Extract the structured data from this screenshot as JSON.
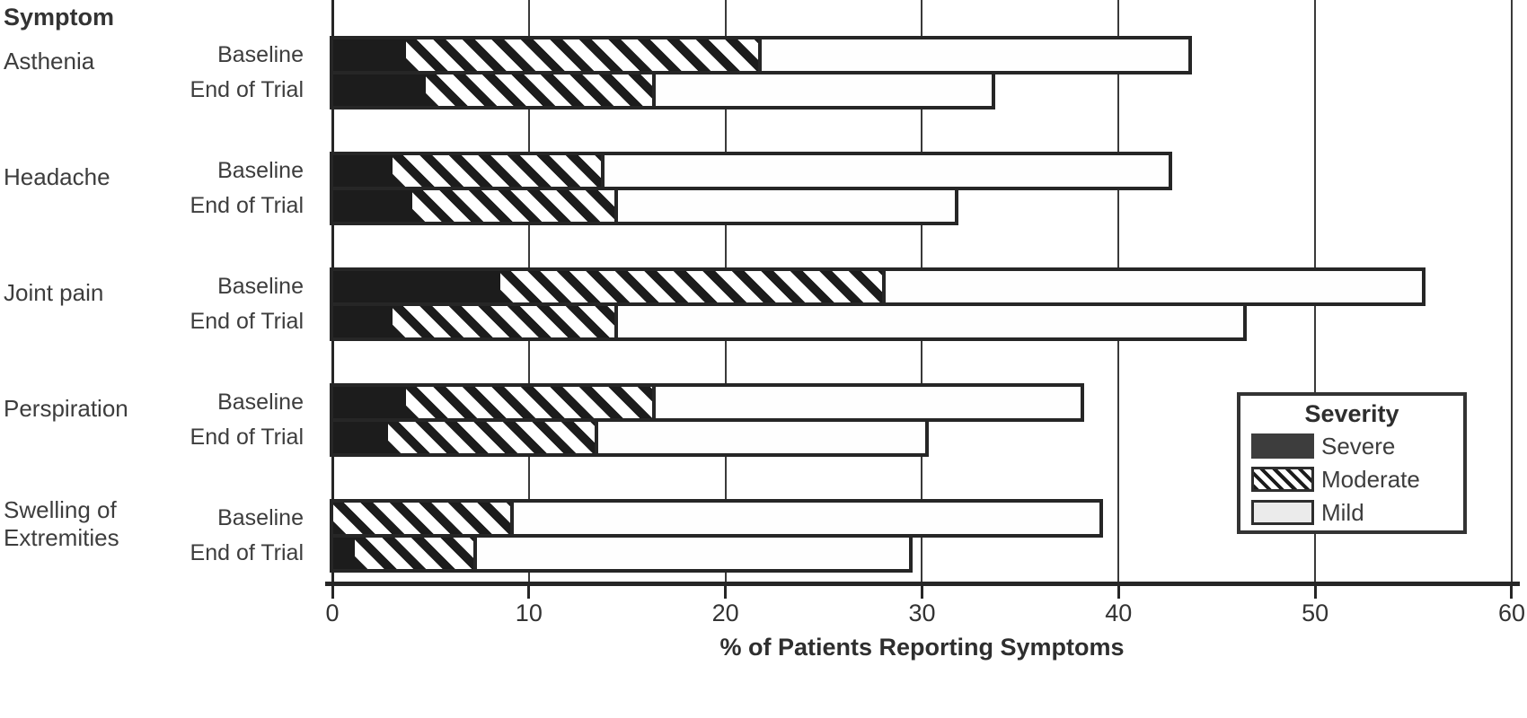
{
  "header": {
    "symptom": "Symptom"
  },
  "xlabel": "% of Patients Reporting Symptoms",
  "legend": {
    "title": "Severity",
    "items": [
      {
        "label": "Severe",
        "style": "solid-dark"
      },
      {
        "label": "Moderate",
        "style": "diagonal-hatch"
      },
      {
        "label": "Mild",
        "style": "light"
      }
    ]
  },
  "colors": {
    "severe": "#1c1c1c",
    "mild": "#ffffff",
    "legend_mild": "#ebebeb",
    "bar_border": "#262626",
    "gridline": "#3a3a3a",
    "text": "#383838"
  },
  "chart_data": {
    "type": "bar",
    "orientation": "horizontal",
    "stacked": true,
    "xlabel": "% of Patients Reporting Symptoms",
    "xlim": [
      0,
      60
    ],
    "ticks": [
      0,
      10,
      20,
      30,
      40,
      50,
      60
    ],
    "grid": true,
    "legend_position": "right-middle",
    "severity_levels": [
      "Severe",
      "Moderate",
      "Mild"
    ],
    "row_names": [
      "Baseline",
      "End of Trial"
    ],
    "groups": [
      {
        "symptom": "Asthenia",
        "label_lines": [
          "Asthenia"
        ],
        "bars": [
          {
            "label": "Baseline",
            "severe": 3.7,
            "moderate": 18.1,
            "mild": 21.7,
            "total": 43.5
          },
          {
            "label": "End of Trial",
            "severe": 4.7,
            "moderate": 11.7,
            "mild": 17.1,
            "total": 33.5
          }
        ]
      },
      {
        "symptom": "Headache",
        "label_lines": [
          "Headache"
        ],
        "bars": [
          {
            "label": "Baseline",
            "severe": 3.0,
            "moderate": 10.8,
            "mild": 28.7,
            "total": 42.5
          },
          {
            "label": "End of Trial",
            "severe": 4.0,
            "moderate": 10.5,
            "mild": 17.1,
            "total": 31.6
          }
        ]
      },
      {
        "symptom": "Joint pain",
        "label_lines": [
          "Joint pain"
        ],
        "bars": [
          {
            "label": "Baseline",
            "severe": 8.5,
            "moderate": 19.6,
            "mild": 27.3,
            "total": 55.4
          },
          {
            "label": "End of Trial",
            "severe": 3.0,
            "moderate": 11.5,
            "mild": 31.8,
            "total": 46.3
          }
        ]
      },
      {
        "symptom": "Perspiration",
        "label_lines": [
          "Perspiration"
        ],
        "bars": [
          {
            "label": "Baseline",
            "severe": 3.7,
            "moderate": 12.7,
            "mild": 21.6,
            "total": 38.0
          },
          {
            "label": "End of Trial",
            "severe": 2.8,
            "moderate": 10.7,
            "mild": 16.6,
            "total": 30.1
          }
        ]
      },
      {
        "symptom": "Swelling of Extremities",
        "label_lines": [
          "Swelling of",
          "Extremities"
        ],
        "bars": [
          {
            "label": "Baseline",
            "severe": 0.0,
            "moderate": 9.2,
            "mild": 29.8,
            "total": 39.0
          },
          {
            "label": "End of Trial",
            "severe": 1.1,
            "moderate": 6.2,
            "mild": 22.0,
            "total": 29.3
          }
        ]
      }
    ]
  }
}
